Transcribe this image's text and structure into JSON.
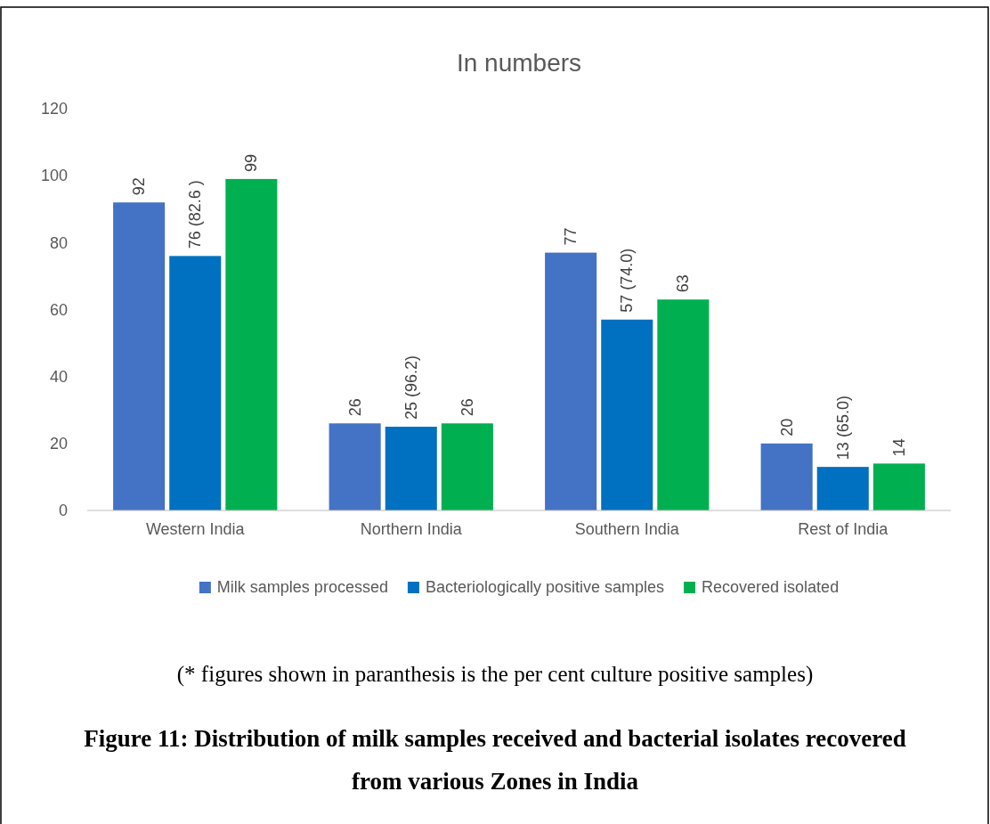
{
  "chart_data": {
    "type": "bar",
    "title": "In numbers",
    "categories": [
      "Western India",
      "Northern India",
      "Southern India",
      "Rest of India"
    ],
    "series": [
      {
        "name": "Milk samples processed",
        "color": "#4472c4",
        "values": [
          92,
          26,
          77,
          20
        ],
        "value_labels": [
          "92",
          "26",
          "77",
          "20"
        ]
      },
      {
        "name": "Bacteriologically positive samples",
        "color": "#0070c0",
        "values": [
          76,
          25,
          57,
          13
        ],
        "value_labels": [
          "76 (82.6 )",
          "25 (96.2)",
          "57 (74.0)",
          "13 (65.0)"
        ]
      },
      {
        "name": "Recovered isolated",
        "color": "#00b050",
        "values": [
          99,
          26,
          63,
          14
        ],
        "value_labels": [
          "99",
          "26",
          "63",
          "14"
        ]
      }
    ],
    "ylim": [
      0,
      120
    ],
    "yticks": [
      0,
      20,
      40,
      60,
      80,
      100,
      120
    ],
    "legend": "bottom",
    "annotations": [
      "(* figures shown in paranthesis is the per cent culture positive samples)",
      "Figure 11: Distribution of milk samples received and bacterial isolates recovered from various Zones in India"
    ]
  }
}
